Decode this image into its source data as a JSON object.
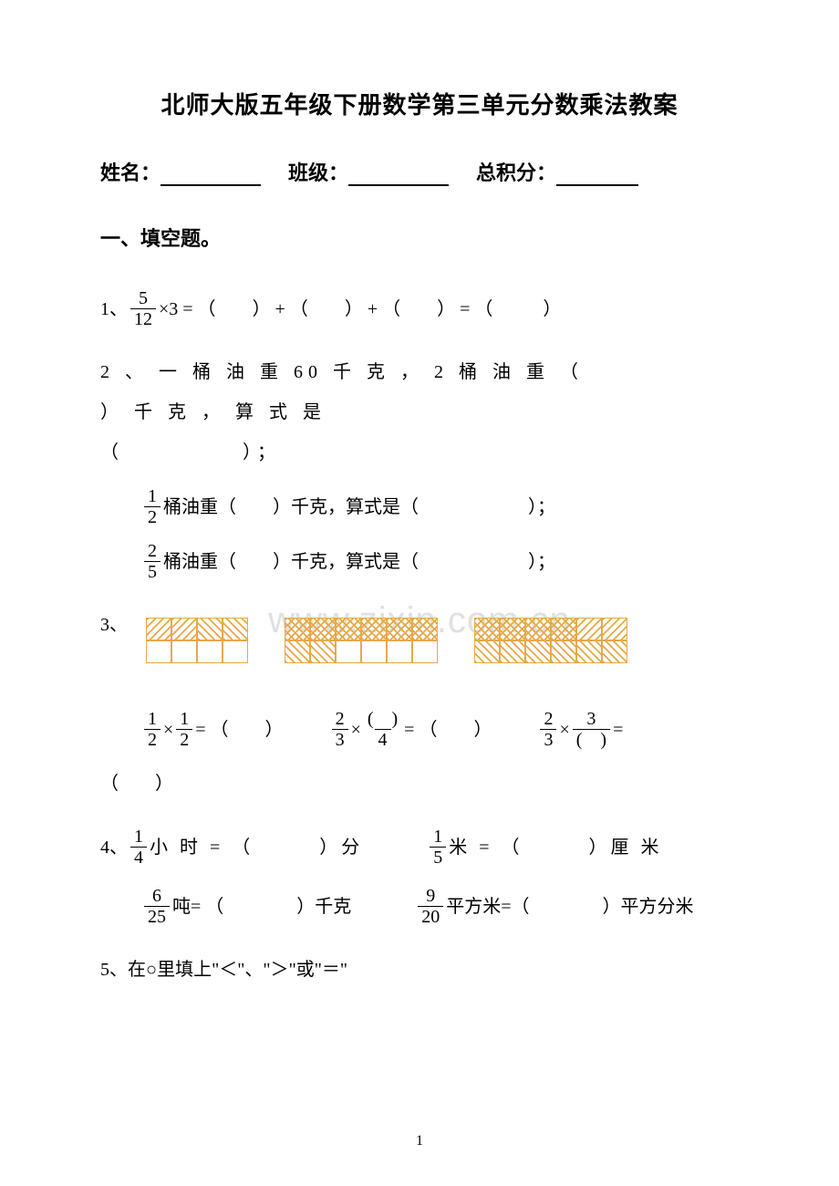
{
  "title": "北师大版五年级下册数学第三单元分数乘法教案",
  "header": {
    "name_label": "姓名：",
    "class_label": "班级：",
    "score_label": "总积分："
  },
  "section1_heading": "一、填空题。",
  "q1": {
    "prefix": "1、",
    "frac_num": "5",
    "frac_den": "12",
    "after_frac": "×3 = （",
    "plus1": "） + （",
    "plus2": "） + （",
    "eq": "） = （",
    "end": "）"
  },
  "q2": {
    "line1a": "2 、 一 桶 油 重 60 千 克 ， 2 桶 油 重 （",
    "line1b": "） 千 克 ， 算 式 是",
    "line1c": "（",
    "line1d": "）；",
    "line2_num": "1",
    "line2_den": "2",
    "line2_text": "桶油重（　　）千克，算式是（　　　　　　）；",
    "line3_num": "2",
    "line3_den": "5",
    "line3_text": "桶油重（　　）千克，算式是（　　　　　　）；"
  },
  "q3": {
    "prefix": "3、",
    "grids": [
      {
        "cols": 4,
        "pattern": [
          [
            "hatch-left",
            "hatch-left",
            "hatch-right",
            "hatch-right"
          ],
          [
            "",
            "",
            "",
            ""
          ]
        ]
      },
      {
        "cols": 6,
        "pattern": [
          [
            "hatch-cross",
            "hatch-cross",
            "hatch-cross",
            "hatch-cross",
            "hatch-cross",
            "hatch-cross"
          ],
          [
            "hatch-right",
            "hatch-right",
            "",
            "",
            "",
            ""
          ]
        ]
      },
      {
        "cols": 6,
        "pattern": [
          [
            "hatch-cross",
            "hatch-cross",
            "hatch-cross",
            "hatch-cross",
            "hatch-left",
            "hatch-left"
          ],
          [
            "hatch-right",
            "hatch-right",
            "hatch-right",
            "hatch-right",
            "hatch-right",
            "hatch-right"
          ]
        ]
      }
    ],
    "eqs": [
      {
        "l_num": "1",
        "l_den": "2",
        "mid": " × ",
        "r_num": "1",
        "r_den": "2",
        "tail": " = （　　）"
      },
      {
        "l_num": "2",
        "l_den": "3",
        "mid": " × ",
        "r_num": "(　)",
        "r_den": "4",
        "tail": " = （　　）"
      },
      {
        "l_num": "2",
        "l_den": "3",
        "mid": " × ",
        "r_num": "3",
        "r_den": "(　)",
        "tail": " ="
      }
    ],
    "last_tail": "（　　）"
  },
  "q4": {
    "prefix": "4、",
    "items": [
      {
        "num": "1",
        "den": "4",
        "text": " 小 时 = （　　　）分"
      },
      {
        "num": "1",
        "den": "5",
        "text": " 米 = （　　　）厘 米"
      },
      {
        "num": "6",
        "den": "25",
        "text": "吨= （　　　　）千克"
      },
      {
        "num": "9",
        "den": "20",
        "text": "平方米=（　　　　）平方分米"
      }
    ]
  },
  "q5": {
    "text": "5、在○里填上\"＜\"、\"＞\"或\"＝\""
  },
  "watermark": "www.zixin.com.cn",
  "page_number": "1",
  "colors": {
    "text": "#000000",
    "watermark": "#e0e0e0",
    "grid_border": "#e8a84a",
    "background": "#ffffff"
  }
}
